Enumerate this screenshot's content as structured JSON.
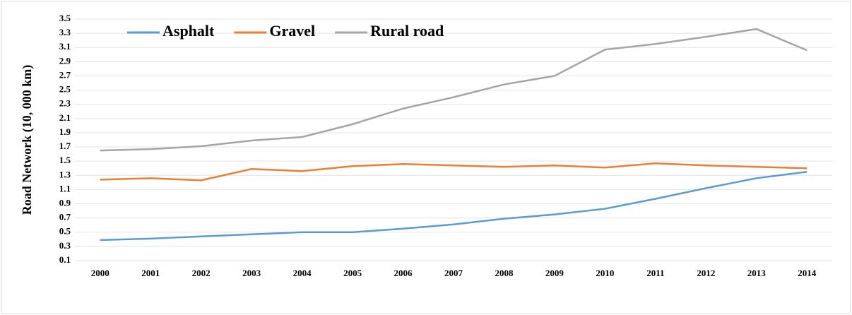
{
  "chart_data": {
    "type": "line",
    "y_label": "Road Network (10, 000 km)",
    "categories": [
      "2000",
      "2001",
      "2002",
      "2003",
      "2004",
      "2005",
      "2006",
      "2007",
      "2008",
      "2009",
      "2010",
      "2011",
      "2012",
      "2013",
      "2014"
    ],
    "series": [
      {
        "name": "Asphalt",
        "color": "#5b9bd5",
        "values": [
          0.39,
          0.41,
          0.44,
          0.47,
          0.5,
          0.5,
          0.55,
          0.61,
          0.69,
          0.75,
          0.83,
          0.97,
          1.12,
          1.26,
          1.35
        ]
      },
      {
        "name": "Gravel",
        "color": "#ed7d31",
        "values": [
          1.24,
          1.26,
          1.23,
          1.39,
          1.36,
          1.43,
          1.46,
          1.44,
          1.42,
          1.44,
          1.41,
          1.47,
          1.44,
          1.42,
          1.4
        ]
      },
      {
        "name": "Rural road",
        "color": "#a5a5a5",
        "values": [
          1.65,
          1.67,
          1.71,
          1.79,
          1.84,
          2.02,
          2.24,
          2.4,
          2.58,
          2.7,
          3.07,
          3.15,
          3.25,
          3.36,
          3.06
        ]
      }
    ],
    "ylim": [
      0.1,
      3.5
    ],
    "yticks": [
      0.1,
      0.3,
      0.5,
      0.7,
      0.9,
      1.1,
      1.3,
      1.5,
      1.7,
      1.9,
      2.1,
      2.3,
      2.5,
      2.7,
      2.9,
      3.1,
      3.3,
      3.5
    ],
    "grid": true,
    "legend": "upper left"
  }
}
